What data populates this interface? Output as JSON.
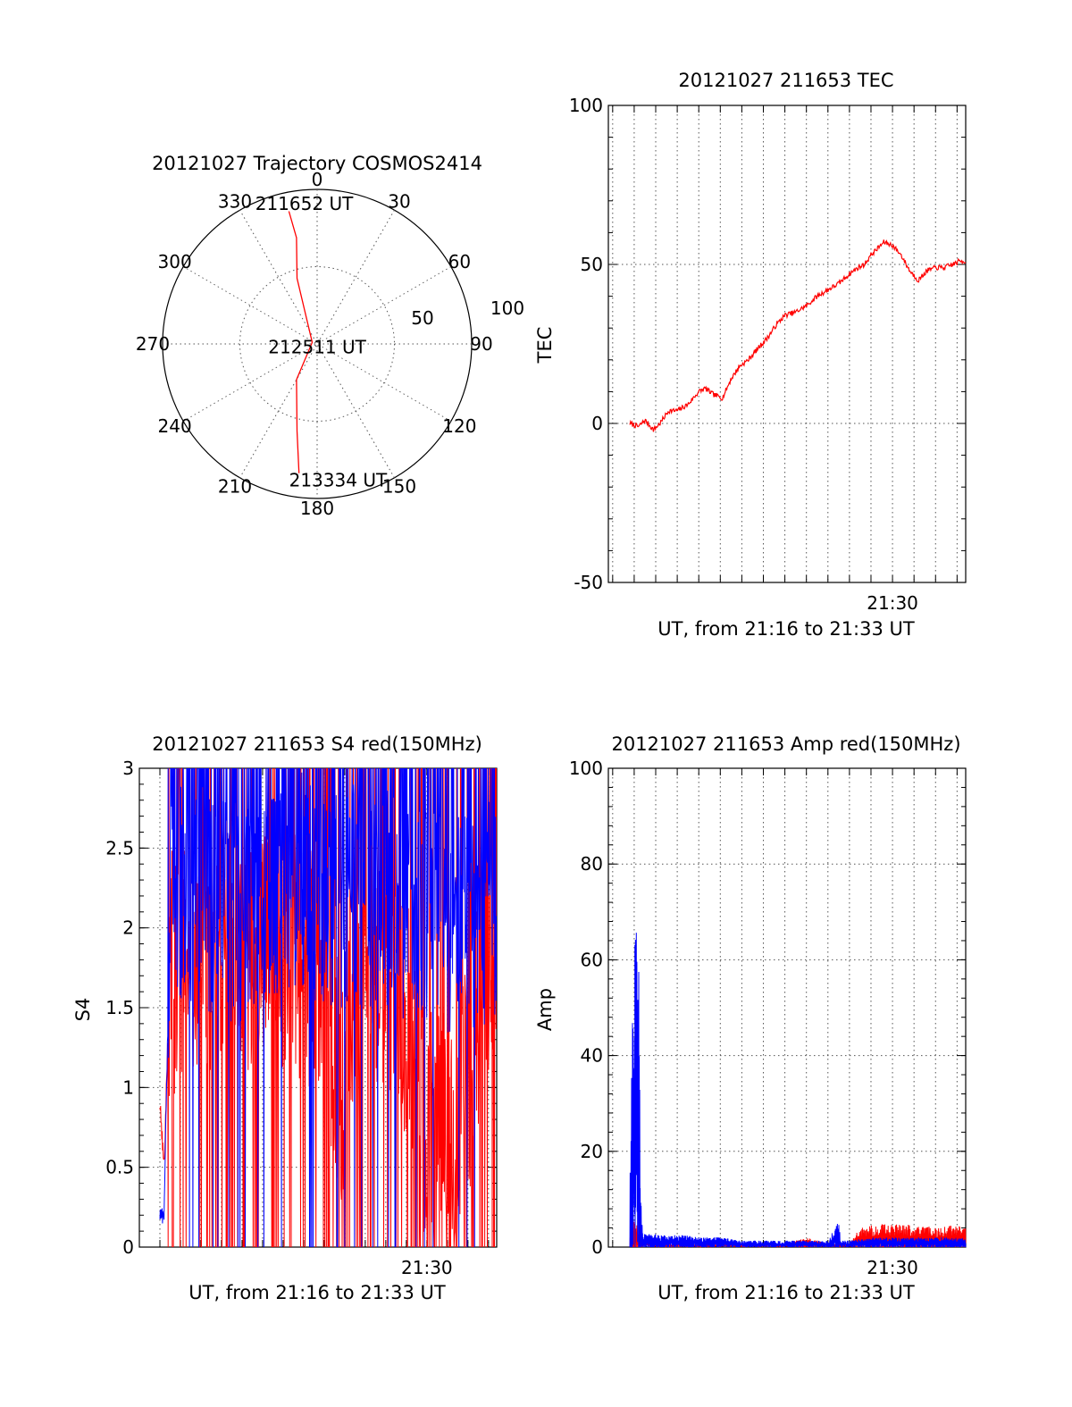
{
  "chart_data": [
    {
      "type": "polar-trajectory",
      "title": "20121027 Trajectory COSMOS2414",
      "azimuth_labels": [
        "0",
        "30",
        "60",
        "90",
        "120",
        "150",
        "180",
        "210",
        "240",
        "270",
        "300",
        "330"
      ],
      "radial_labels": [
        "50",
        "100"
      ],
      "track_color": "#ff0000",
      "track": [
        {
          "azimuth": 348,
          "elevation": 11
        },
        {
          "azimuth": 349,
          "elevation": 27
        },
        {
          "azimuth": 343,
          "elevation": 50
        },
        {
          "azimuth": 288,
          "elevation": 87
        },
        {
          "azimuth": 210,
          "elevation": 66
        },
        {
          "azimuth": 193,
          "elevation": 38
        },
        {
          "azimuth": 188,
          "elevation": 14
        }
      ],
      "annotations": [
        {
          "text": "211652 UT",
          "azimuth": 354,
          "elevation": 8
        },
        {
          "text": "212511 UT",
          "azimuth": 210,
          "elevation": 88
        },
        {
          "text": "213334 UT",
          "azimuth": 172,
          "elevation": 10
        }
      ]
    },
    {
      "type": "line",
      "title": "20121027 211653 TEC",
      "ylabel": "TEC",
      "xlabel": "UT, from 21:16 to 21:33 UT",
      "xlim": [
        16.8,
        33.4
      ],
      "ylim": [
        -50,
        100
      ],
      "yticks": [
        -50,
        0,
        50,
        100
      ],
      "xtick_label": "21:30",
      "xtick_label_at": 30.0,
      "grid": true,
      "series": [
        {
          "color": "#ff0000",
          "x": [
            17.8,
            18.2,
            18.5,
            18.9,
            19.2,
            19.6,
            20.0,
            20.5,
            21.0,
            21.3,
            21.7,
            22.1,
            22.5,
            22.9,
            23.3,
            23.8,
            24.2,
            24.6,
            25.0,
            25.5,
            26.0,
            26.5,
            27.0,
            27.5,
            28.0,
            28.4,
            28.7,
            29.0,
            29.3,
            29.6,
            30.0,
            30.4,
            30.8,
            31.2,
            31.6,
            32.0,
            32.4,
            32.8,
            33.1,
            33.4
          ],
          "values": [
            0,
            -1,
            1,
            -2,
            0,
            4,
            4,
            6,
            10,
            11,
            9,
            8,
            14,
            18,
            20,
            24,
            27,
            31,
            34,
            35,
            37,
            40,
            42,
            44,
            47,
            49,
            50,
            53,
            55,
            57,
            56,
            53,
            48,
            45,
            48,
            49,
            49,
            50,
            51,
            51
          ]
        }
      ]
    },
    {
      "type": "line",
      "title": "20121027 211653 S4 red(150MHz)",
      "ylabel": "S4",
      "xlabel": "UT, from 21:16 to 21:33 UT",
      "xlim": [
        16.0,
        33.4
      ],
      "ylim": [
        0,
        3
      ],
      "yticks": [
        0,
        0.5,
        1,
        1.5,
        2,
        2.5,
        3
      ],
      "ytick_labels": [
        "0",
        "0.5",
        "1",
        "1.5",
        "2",
        "2.5",
        "3"
      ],
      "xtick_label": "21:30",
      "xtick_label_at": 30.0,
      "grid": true,
      "series_colors": [
        "#ff0000",
        "#0000ff"
      ],
      "series": [
        {
          "color": "#ff0000",
          "x": [
            17.0,
            17.2,
            17.5,
            18.0,
            19.0,
            20.0,
            21.0,
            22.0,
            23.0,
            24.0,
            25.0,
            26.0,
            27.0,
            28.0,
            29.0,
            30.0,
            31.0,
            32.0,
            33.0,
            33.4
          ],
          "values": [
            0.9,
            0.5,
            1.8,
            1.7,
            1.8,
            1.7,
            1.8,
            1.9,
            1.9,
            1.8,
            1.5,
            1.0,
            1.8,
            1.7,
            1.4,
            0.8,
            0.8,
            1.0,
            1.8,
            1.9
          ]
        },
        {
          "color": "#0000ff",
          "x": [
            17.0,
            17.2,
            17.5,
            18.0,
            19.0,
            20.0,
            21.0,
            22.0,
            23.0,
            24.0,
            25.0,
            26.0,
            27.0,
            28.0,
            29.0,
            30.0,
            31.0,
            32.0,
            33.0,
            33.4
          ],
          "values": [
            0.2,
            0.2,
            2.1,
            2.2,
            2.2,
            2.1,
            2.1,
            2.2,
            2.3,
            2.3,
            2.2,
            2.2,
            2.2,
            2.2,
            2.1,
            2.1,
            2.0,
            2.0,
            2.1,
            2.1
          ]
        }
      ]
    },
    {
      "type": "line",
      "title": "20121027 211653 Amp red(150MHz)",
      "ylabel": "Amp",
      "xlabel": "UT, from 21:16 to 21:33 UT",
      "xlim": [
        16.8,
        33.4
      ],
      "ylim": [
        0,
        100
      ],
      "yticks": [
        0,
        20,
        40,
        60,
        80,
        100
      ],
      "xtick_label": "21:30",
      "xtick_label_at": 30.0,
      "grid": true,
      "series": [
        {
          "color": "#0000ff",
          "x": [
            17.8,
            17.9,
            18.0,
            18.1,
            18.2,
            18.3,
            18.4,
            19,
            20,
            21,
            22,
            23,
            24,
            25,
            26,
            27,
            27.5,
            27.6,
            28,
            29,
            30,
            31,
            32,
            33,
            33.4
          ],
          "values": [
            10,
            35,
            45,
            56,
            50,
            8,
            2,
            2,
            2,
            1.5,
            1.5,
            1,
            1,
            1,
            1,
            1,
            4,
            1,
            1,
            1.5,
            1.5,
            1.5,
            1.5,
            1.5,
            1.5
          ]
        },
        {
          "color": "#ff0000",
          "x": [
            17.8,
            18.0,
            18.2,
            18.4,
            19,
            20,
            21,
            22,
            23,
            24,
            25,
            26,
            27,
            28,
            28.5,
            29,
            30,
            31,
            32,
            33,
            33.4
          ],
          "values": [
            2,
            4,
            3,
            1,
            0.5,
            0.5,
            0.5,
            0.5,
            0.5,
            0.5,
            0.5,
            1.5,
            0.5,
            0.5,
            3,
            3.5,
            3.5,
            3.5,
            3,
            3.5,
            3
          ]
        }
      ]
    }
  ]
}
